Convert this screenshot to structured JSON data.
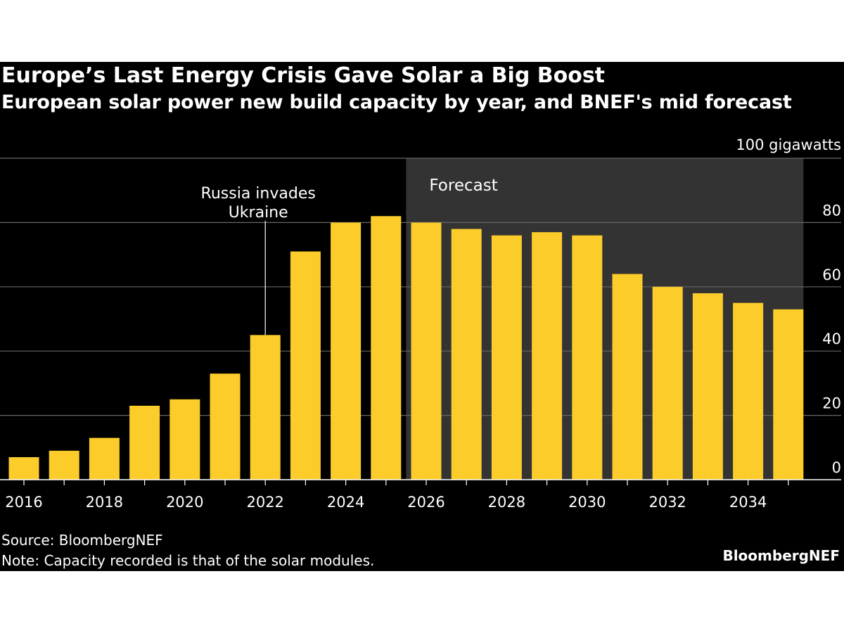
{
  "header": {
    "title": "Europe’s Last Energy Crisis Gave Solar a Big Boost",
    "subtitle": "European solar power new build capacity by year, and BNEF's mid forecast"
  },
  "footer": {
    "source": "Source: BloombergNEF",
    "note": "Note: Capacity recorded is that of the solar modules.",
    "logo": "BloombergNEF"
  },
  "colors": {
    "background": "#000000",
    "bar": "#fccc2a",
    "forecast_band": "#333333",
    "grid": "#666666",
    "text": "#ffffff"
  },
  "chart_data": {
    "type": "bar",
    "title": "Europe’s Last Energy Crisis Gave Solar a Big Boost",
    "subtitle": "European solar power new build capacity by year, and BNEF's mid forecast",
    "unit_label": "100 gigawatts",
    "xlabel": "",
    "ylabel": "gigawatts",
    "categories": [
      2016,
      2017,
      2018,
      2019,
      2020,
      2021,
      2022,
      2023,
      2024,
      2025,
      2026,
      2027,
      2028,
      2029,
      2030,
      2031,
      2032,
      2033,
      2034,
      2035
    ],
    "values": [
      7,
      9,
      13,
      23,
      25,
      33,
      45,
      71,
      80,
      82,
      80,
      78,
      76,
      77,
      76,
      64,
      60,
      58,
      55,
      53
    ],
    "x_tick_labels": [
      "2016",
      "2018",
      "2020",
      "2022",
      "2024",
      "2026",
      "2028",
      "2030",
      "2032",
      "2034"
    ],
    "y_ticks": [
      0,
      20,
      40,
      60,
      80,
      100
    ],
    "y_tick_labels": [
      "0",
      "20",
      "40",
      "60",
      "80"
    ],
    "ylim": [
      0,
      100
    ],
    "grid": true,
    "y_axis_side": "right",
    "forecast": {
      "label": "Forecast",
      "start_year": 2026,
      "end_year": 2035
    },
    "annotations": [
      {
        "year": 2022,
        "lines": [
          "Russia invades",
          "Ukraine"
        ]
      }
    ]
  }
}
